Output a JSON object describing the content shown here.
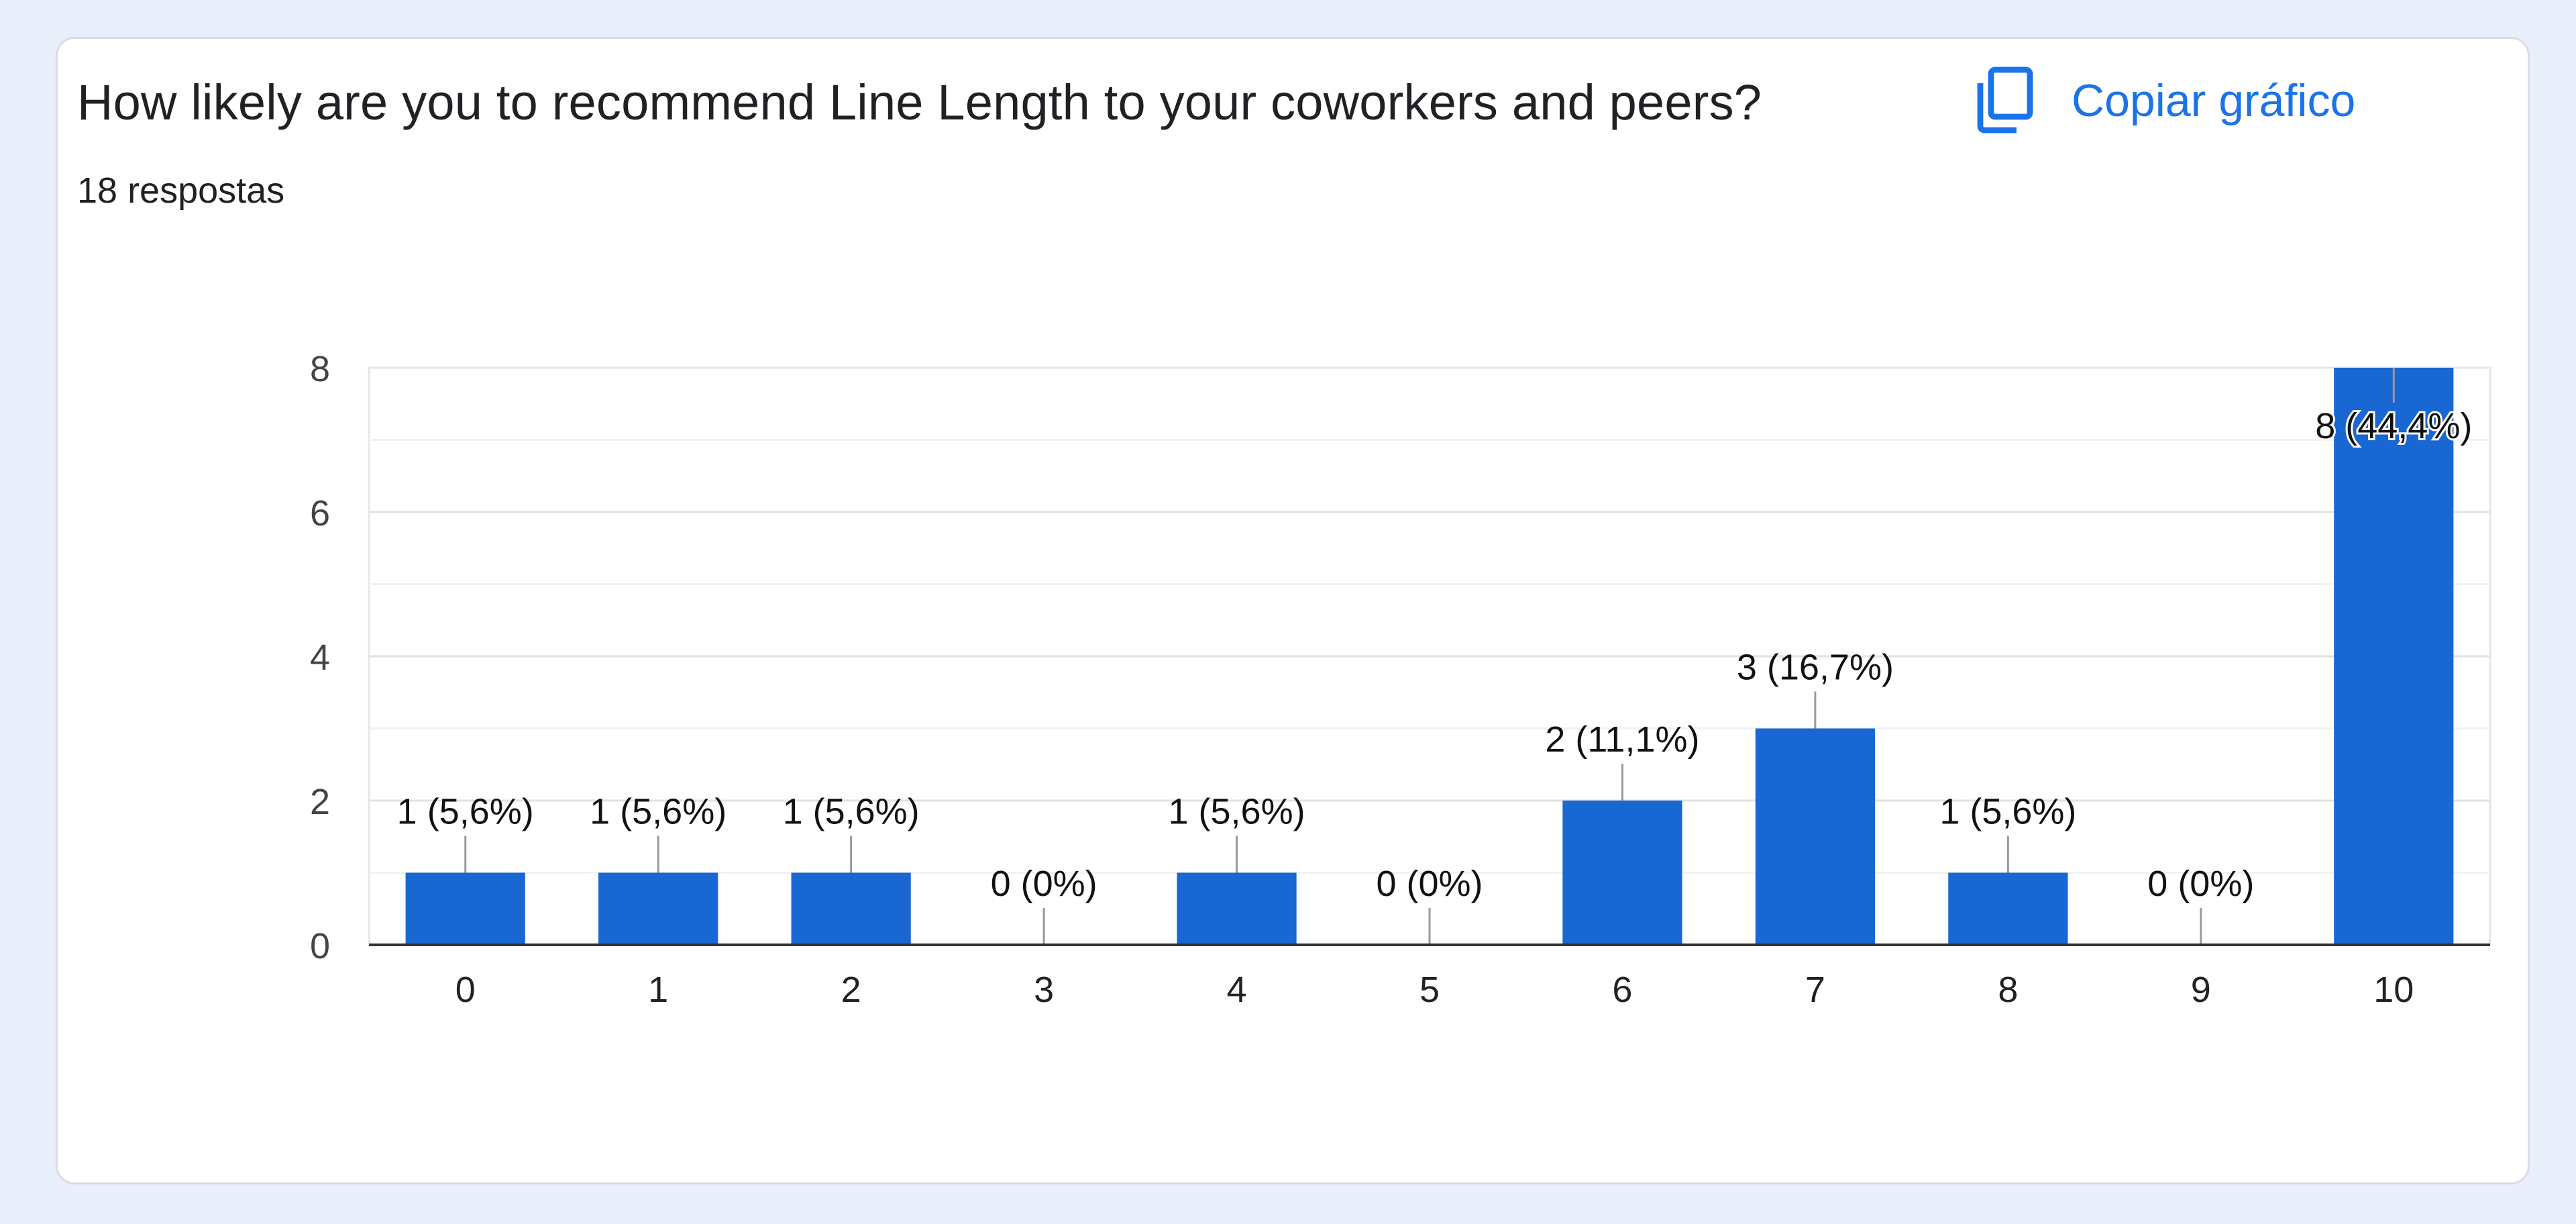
{
  "question": "How likely are you to recommend Line Length to your coworkers and peers?",
  "response_count": "18 respostas",
  "copy_button": {
    "label": "Copiar gráfico",
    "icon": "copy-icon"
  },
  "colors": {
    "bar": "#1967d2",
    "accent": "#1a73e8",
    "background": "#e8effa"
  },
  "chart_data": {
    "type": "bar",
    "categories": [
      "0",
      "1",
      "2",
      "3",
      "4",
      "5",
      "6",
      "7",
      "8",
      "9",
      "10"
    ],
    "values": [
      1,
      1,
      1,
      0,
      1,
      0,
      2,
      3,
      1,
      0,
      8
    ],
    "data_labels": [
      "1 (5,6%)",
      "1 (5,6%)",
      "1 (5,6%)",
      "0 (0%)",
      "1 (5,6%)",
      "0 (0%)",
      "2 (11,1%)",
      "3 (16,7%)",
      "1 (5,6%)",
      "0 (0%)",
      "8 (44,4%)"
    ],
    "y_ticks": [
      "0",
      "2",
      "4",
      "6",
      "8"
    ],
    "ylim": [
      0,
      8
    ],
    "grid": true,
    "legend": false
  }
}
